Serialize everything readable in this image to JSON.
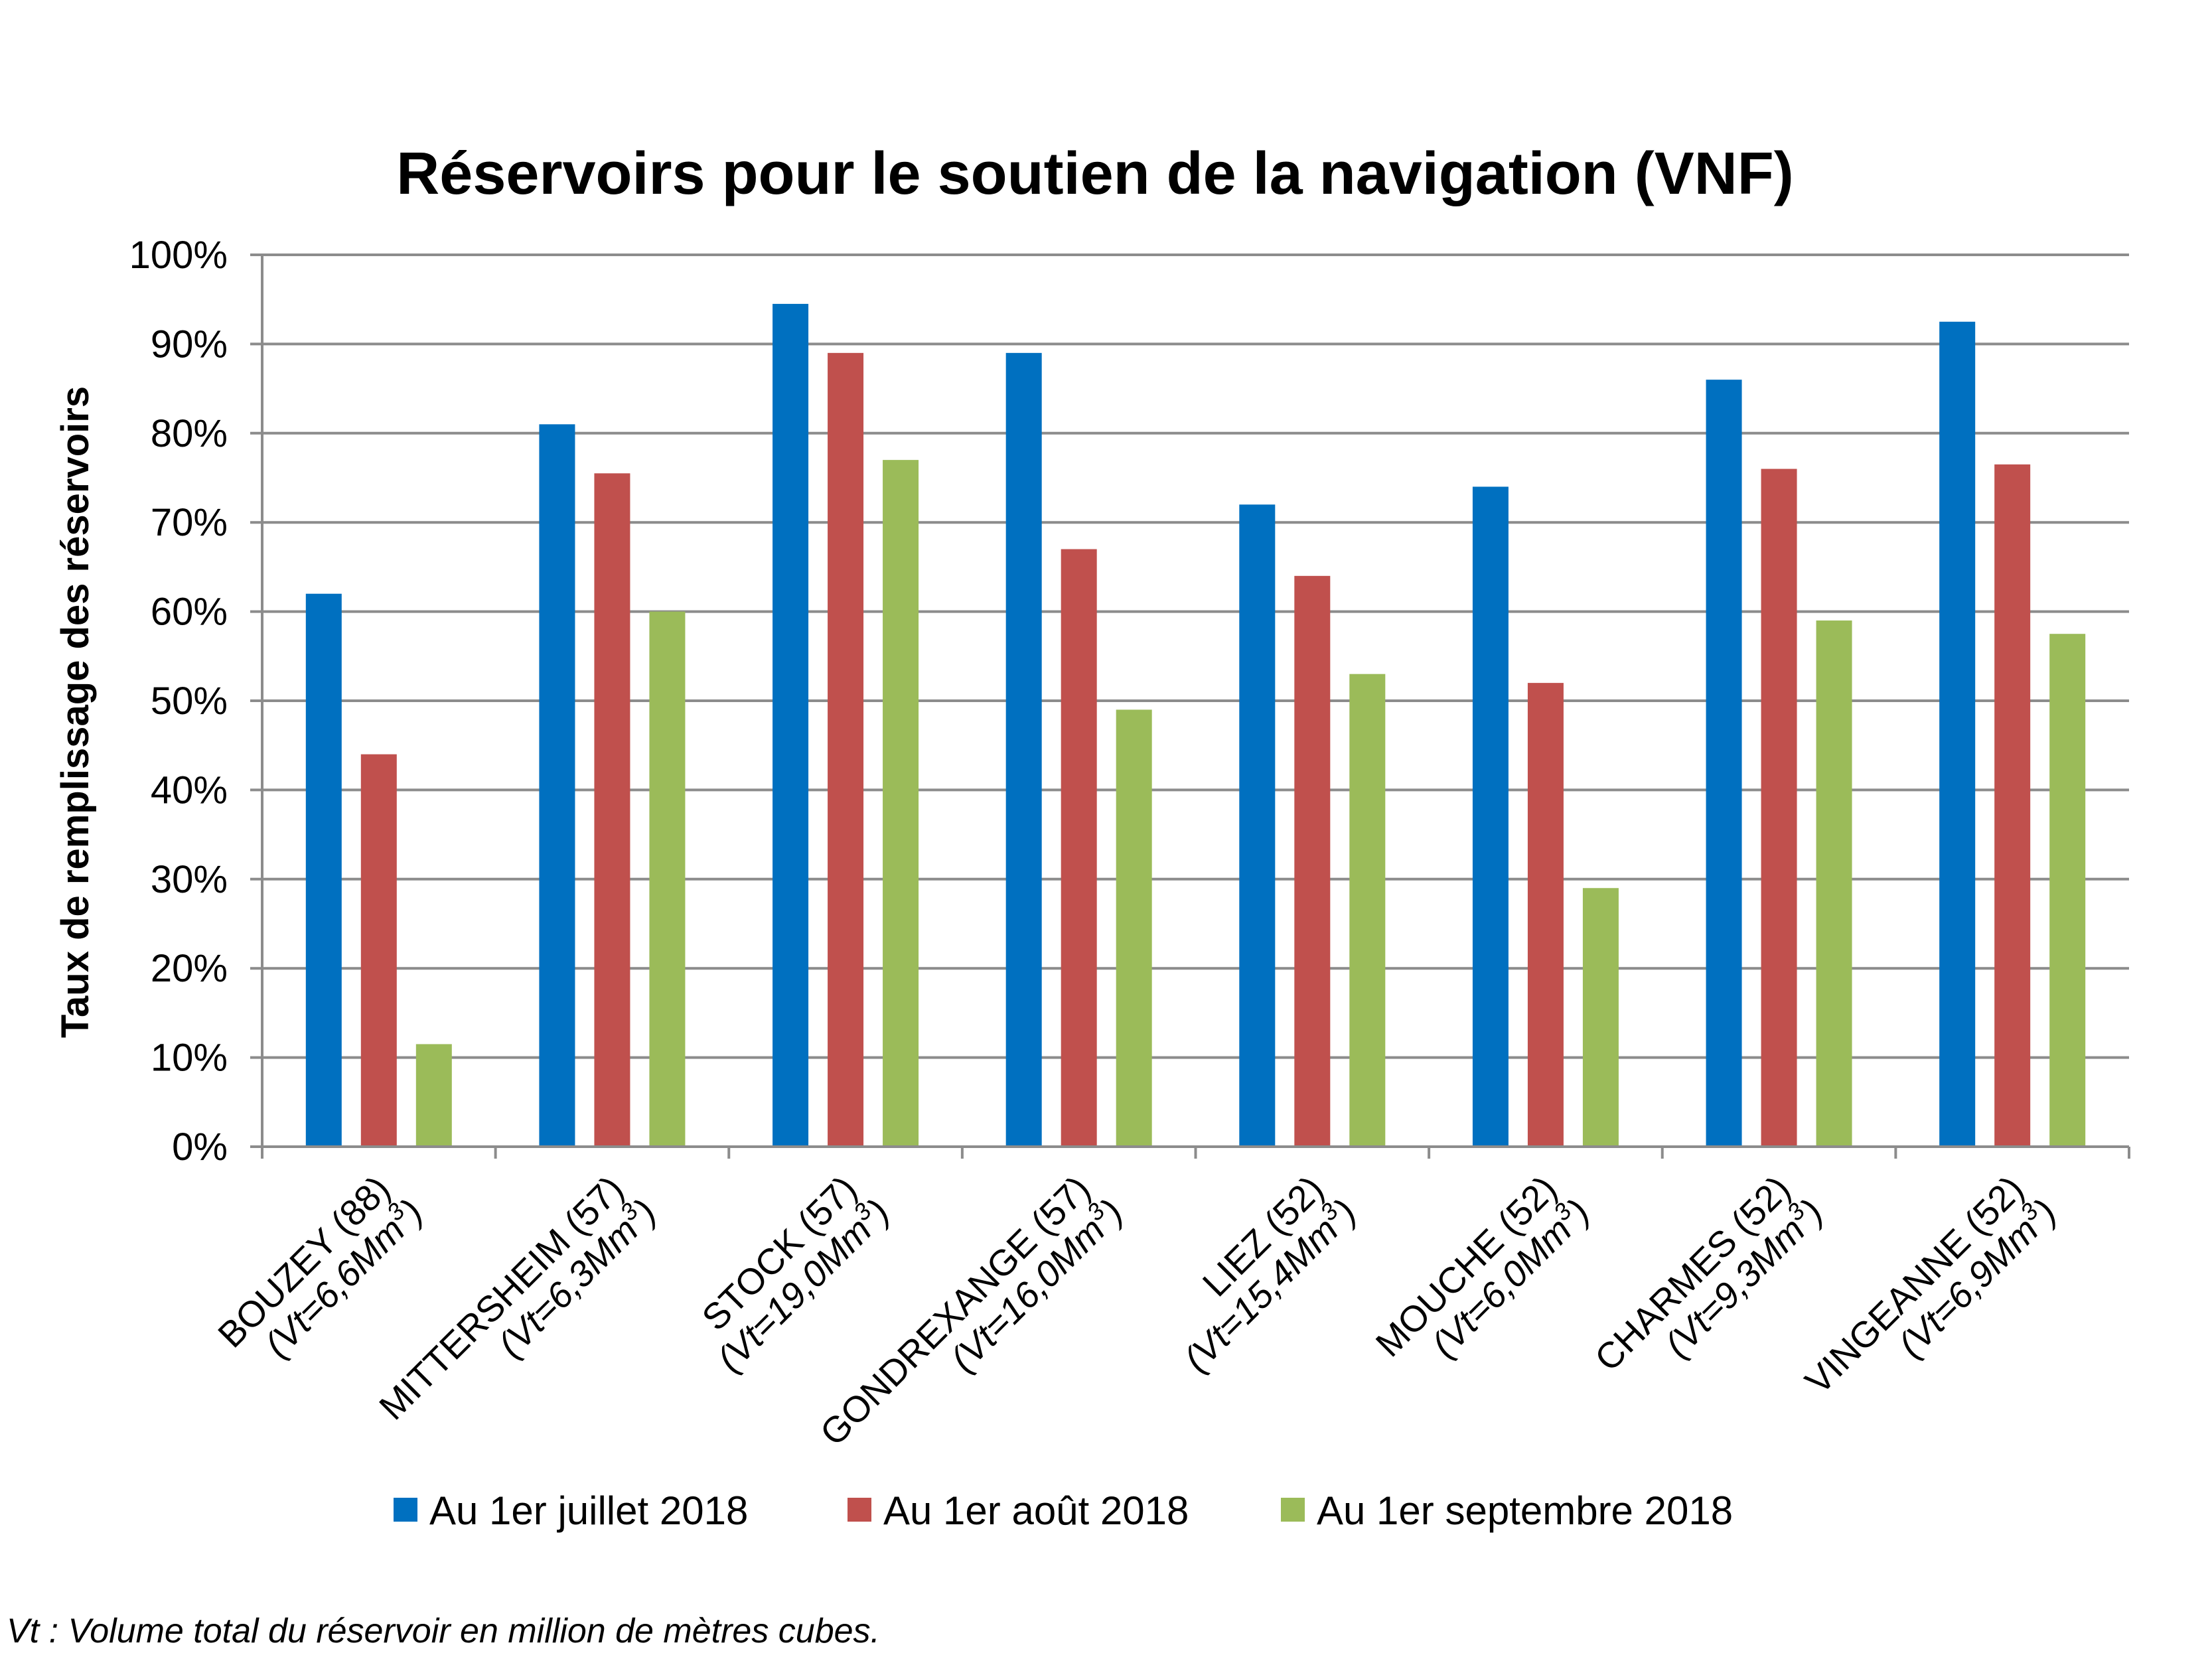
{
  "footnote": "Vt : Volume total du réservoir en million de mètres cubes.",
  "chart_data": {
    "type": "bar",
    "title": "Réservoirs pour le soutien de la navigation (VNF)",
    "ylabel": "Taux de remplissage des réservoirs",
    "xlabel": "",
    "ylim": [
      0,
      100
    ],
    "yticks": [
      "0%",
      "10%",
      "20%",
      "30%",
      "40%",
      "50%",
      "60%",
      "70%",
      "80%",
      "90%",
      "100%"
    ],
    "grid": true,
    "legend_position": "bottom",
    "categories": [
      {
        "name": "BOUZEY (88)",
        "vt": "(Vt=6,6Mm",
        "sup": "3",
        "close": ")"
      },
      {
        "name": "MITTERSHEIM (57)",
        "vt": "(Vt=6,3Mm",
        "sup": "3",
        "close": ")"
      },
      {
        "name": "STOCK (57)",
        "vt": "(Vt=19,0Mm",
        "sup": "3",
        "close": ")"
      },
      {
        "name": "GONDREXANGE (57)",
        "vt": "(Vt=16,0Mm",
        "sup": "3",
        "close": ")"
      },
      {
        "name": "LIEZ (52)",
        "vt": "(Vt=15,4Mm",
        "sup": "3",
        "close": ")"
      },
      {
        "name": "MOUCHE (52)",
        "vt": "(Vt=6,0Mm",
        "sup": "3",
        "close": ")"
      },
      {
        "name": "CHARMES (52)",
        "vt": "(Vt=9,3Mm",
        "sup": "3",
        "close": ")"
      },
      {
        "name": "VINGEANNE (52)",
        "vt": "(Vt=6,9Mm",
        "sup": "3",
        "close": ")"
      }
    ],
    "series": [
      {
        "name": "Au 1er juillet 2018",
        "color": "#0070C0",
        "values": [
          62,
          81,
          94.5,
          89,
          72,
          74,
          86,
          92.5
        ]
      },
      {
        "name": "Au 1er août 2018",
        "color": "#C0504D",
        "values": [
          44,
          75.5,
          89,
          67,
          64,
          52,
          76,
          76.5
        ]
      },
      {
        "name": "Au 1er septembre 2018",
        "color": "#9BBB59",
        "values": [
          11.5,
          60,
          77,
          49,
          53,
          29,
          59,
          57.5
        ]
      }
    ]
  }
}
